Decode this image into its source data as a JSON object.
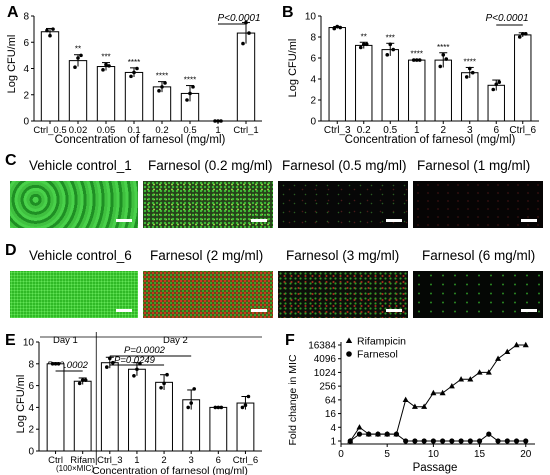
{
  "panels": {
    "A": {
      "label": "A",
      "ylabel": "Log CFU/ml",
      "xlabel": "Concentration of farnesol (mg/ml)",
      "pvalue": "P<0.0001",
      "chart_data": {
        "type": "bar",
        "categories": [
          "Ctrl_0.5",
          "0.02",
          "0.05",
          "0.1",
          "0.2",
          "0.5",
          "1",
          "Ctrl_1"
        ],
        "values": [
          6.8,
          4.6,
          4.15,
          3.7,
          2.6,
          2.1,
          0,
          6.7
        ],
        "errors": [
          0.25,
          0.45,
          0.3,
          0.35,
          0.4,
          0.6,
          0,
          0.8
        ],
        "points": [
          [
            6.9,
            6.5,
            7.0
          ],
          [
            4.1,
            4.8,
            5.0
          ],
          [
            3.9,
            4.3,
            4.2
          ],
          [
            3.4,
            3.7,
            4.0
          ],
          [
            2.3,
            2.6,
            2.9
          ],
          [
            1.6,
            2.1,
            2.6
          ],
          [
            0,
            0,
            0
          ],
          [
            5.9,
            7.5,
            6.7
          ]
        ],
        "stars": [
          "",
          "**",
          "***",
          "****",
          "****",
          "****",
          "",
          ""
        ],
        "ylim": [
          0,
          8
        ],
        "yticks": [
          0,
          2,
          4,
          6,
          8
        ]
      }
    },
    "B": {
      "label": "B",
      "ylabel": "Log CFU/ml",
      "xlabel": "Concentration of farnesol (mg/ml)",
      "pvalue": "P<0.0001",
      "chart_data": {
        "type": "bar",
        "categories": [
          "Ctrl_3",
          "0.2",
          "0.5",
          "1",
          "2",
          "3",
          "6",
          "Ctrl_6"
        ],
        "values": [
          8.9,
          7.2,
          6.8,
          5.8,
          5.8,
          4.6,
          3.4,
          8.2
        ],
        "errors": [
          0.1,
          0.3,
          0.6,
          0.05,
          0.7,
          0.5,
          0.5,
          0.2
        ],
        "points": [
          [
            8.8,
            9.0,
            8.9
          ],
          [
            7.0,
            7.3,
            7.3
          ],
          [
            6.3,
            7.3,
            6.8
          ],
          [
            5.8,
            5.8,
            5.8
          ],
          [
            5.2,
            6.3,
            5.9
          ],
          [
            4.2,
            5.0,
            4.6
          ],
          [
            3.0,
            3.5,
            3.7
          ],
          [
            8.0,
            8.3,
            8.3
          ]
        ],
        "stars": [
          "",
          "**",
          "***",
          "****",
          "****",
          "****",
          "",
          ""
        ],
        "ylim": [
          0,
          10
        ],
        "yticks": [
          0,
          2,
          4,
          6,
          8,
          10
        ]
      }
    },
    "C": {
      "label": "C",
      "images": [
        {
          "title": "Vehicle control_1",
          "green": 0.95,
          "red": 0.05
        },
        {
          "title": "Farnesol (0.2 mg/ml)",
          "green": 0.7,
          "red": 0.1
        },
        {
          "title": "Farnesol (0.5 mg/ml)",
          "green": 0.04,
          "red": 0.02
        },
        {
          "title": "Farnesol (1 mg/ml)",
          "green": 0.0,
          "red": 0.03
        }
      ]
    },
    "D": {
      "label": "D",
      "images": [
        {
          "title": "Vehicle control_6",
          "green": 0.9,
          "red": 0.05
        },
        {
          "title": "Farnesol (2 mg/ml)",
          "green": 0.45,
          "red": 0.45
        },
        {
          "title": "Farnesol (3 mg/ml)",
          "green": 0.2,
          "red": 0.15
        },
        {
          "title": "Farnesol (6 mg/ml)",
          "green": 0.05,
          "red": 0.01
        }
      ]
    },
    "E": {
      "label": "E",
      "ylabel": "Log CFU/ml",
      "xlabel": "Concentration of farnesol (mg/ml)",
      "day1": "Day 1",
      "day2": "Day 2",
      "p_day1": "P=0.0002",
      "p_a": "P=0.0002",
      "p_b": "P=0.0249",
      "rifam_note": "(100×MIC)",
      "chart_data": {
        "type": "bar",
        "categories": [
          "Ctrl",
          "Rifam",
          "Ctrl_3",
          "1",
          "2",
          "3",
          "6",
          "Ctrl_6"
        ],
        "values": [
          8.0,
          6.4,
          8.1,
          7.5,
          6.3,
          4.7,
          4.0,
          4.4
        ],
        "errors": [
          0.1,
          0.3,
          0.5,
          0.6,
          0.7,
          0.9,
          0.05,
          0.6
        ],
        "points": [
          [
            8.0,
            8.0,
            8.0
          ],
          [
            6.2,
            6.5,
            6.5
          ],
          [
            7.7,
            8.5,
            8.1
          ],
          [
            6.9,
            7.5,
            8.0
          ],
          [
            5.8,
            6.2,
            7.0
          ],
          [
            4.0,
            4.4,
            5.7
          ],
          [
            4.0,
            4.0,
            4.0
          ],
          [
            4.0,
            4.2,
            5.0
          ]
        ],
        "ylim": [
          0,
          10
        ],
        "yticks": [
          0,
          2,
          4,
          6,
          8,
          10
        ]
      }
    },
    "F": {
      "label": "F",
      "ylabel": "Fold change in MIC",
      "xlabel": "Passage",
      "chart_data": {
        "type": "line",
        "x": [
          1,
          2,
          3,
          4,
          5,
          6,
          7,
          8,
          9,
          10,
          11,
          12,
          13,
          14,
          15,
          16,
          17,
          18,
          19,
          20
        ],
        "series": [
          {
            "name": "Rifampicin",
            "marker": "triangle",
            "values": [
              1,
              4,
              2,
              2,
              2,
              2,
              64,
              32,
              32,
              128,
              128,
              256,
              512,
              512,
              1024,
              1024,
              4096,
              8192,
              16384,
              16384
            ]
          },
          {
            "name": "Farnesol",
            "marker": "circle",
            "values": [
              1,
              2,
              2,
              2,
              2,
              2,
              1,
              1,
              1,
              1,
              1,
              1,
              1,
              1,
              1,
              2,
              1,
              1,
              1,
              1
            ]
          }
        ],
        "yscale": "log2",
        "yticks": [
          "1",
          "4",
          "16",
          "64",
          "256",
          "1024",
          "4096",
          "16384"
        ],
        "xticks": [
          0,
          5,
          10,
          15,
          20
        ],
        "legend": "top-left"
      }
    }
  }
}
